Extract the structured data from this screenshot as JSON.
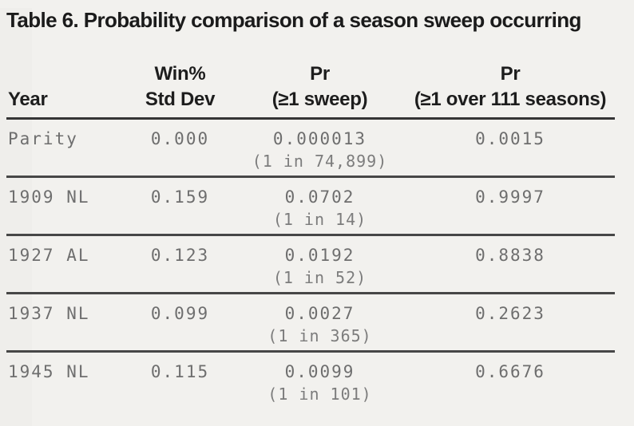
{
  "title": "Table 6. Probability comparison of a season sweep occurring",
  "table": {
    "headers": {
      "year": "Year",
      "win": [
        "Win%",
        "Std Dev"
      ],
      "pr_sweep": [
        "Pr",
        "(≥1 sweep)"
      ],
      "pr_seasons": [
        "Pr",
        "(≥1 over 111 seasons)"
      ]
    },
    "rows": [
      {
        "year": "Parity",
        "win_std_dev": "0.000",
        "pr_sweep": "0.000013",
        "pr_sweep_odds": "(1 in 74,899)",
        "pr_seasons": "0.0015"
      },
      {
        "year": "1909 NL",
        "win_std_dev": "0.159",
        "pr_sweep": "0.0702",
        "pr_sweep_odds": "(1 in 14)",
        "pr_seasons": "0.9997"
      },
      {
        "year": "1927 AL",
        "win_std_dev": "0.123",
        "pr_sweep": "0.0192",
        "pr_sweep_odds": "(1 in 52)",
        "pr_seasons": "0.8838"
      },
      {
        "year": "1937 NL",
        "win_std_dev": "0.099",
        "pr_sweep": "0.0027",
        "pr_sweep_odds": "(1 in 365)",
        "pr_seasons": "0.2623"
      },
      {
        "year": "1945 NL",
        "win_std_dev": "0.115",
        "pr_sweep": "0.0099",
        "pr_sweep_odds": "(1 in 101)",
        "pr_seasons": "0.6676"
      }
    ]
  },
  "colors": {
    "background": "#f2f1ee",
    "heading_text": "#1b1b1b",
    "data_text": "#6e6e6e",
    "rule": "#474747"
  }
}
